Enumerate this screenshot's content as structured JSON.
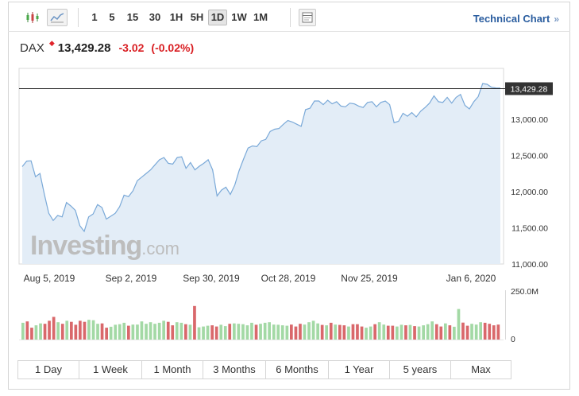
{
  "toolbar": {
    "timeframes": [
      "1",
      "5",
      "15",
      "30",
      "1H",
      "5H",
      "1D",
      "1W",
      "1M"
    ],
    "active_timeframe": "1D",
    "technical_label": "Technical Chart",
    "technical_arrow": "»"
  },
  "quote": {
    "symbol": "DAX",
    "price": "13,429.28",
    "change": "-3.02",
    "change_pct": "(-0.02%)"
  },
  "watermark": {
    "main": "Investing",
    "domain": ".com"
  },
  "range_buttons": [
    "1 Day",
    "1 Week",
    "1 Month",
    "3 Months",
    "6 Months",
    "1 Year",
    "5 years",
    "Max"
  ],
  "colors": {
    "line": "#7aa9d8",
    "area": "#e3edf7",
    "up": "#a3d9a5",
    "down": "#d9686b",
    "last_price_bg": "#333333",
    "change_negative": "#d91f23",
    "link": "#2a5d9f"
  },
  "chart_data": {
    "type": "area",
    "series": [
      {
        "values": [
          12345,
          12420,
          12425,
          12205,
          12250,
          11960,
          11700,
          11600,
          11670,
          11650,
          11850,
          11800,
          11740,
          11530,
          11450,
          11650,
          11690,
          11820,
          11780,
          11620,
          11660,
          11700,
          11790,
          11950,
          11930,
          12010,
          12150,
          12200,
          12250,
          12300,
          12370,
          12440,
          12470,
          12390,
          12380,
          12470,
          12480,
          12320,
          12400,
          12300,
          12350,
          12390,
          12440,
          12300,
          11940,
          12020,
          12060,
          11960,
          12090,
          12290,
          12450,
          12600,
          12630,
          12620,
          12700,
          12720,
          12830,
          12860,
          12870,
          12930,
          12980,
          12960,
          12930,
          12900,
          13130,
          13150,
          13250,
          13250,
          13200,
          13260,
          13210,
          13240,
          13180,
          13170,
          13220,
          13210,
          13180,
          13160,
          13230,
          13240,
          13170,
          13230,
          13250,
          13200,
          12950,
          12970,
          13080,
          13040,
          13090,
          13030,
          13110,
          13160,
          13220,
          13320,
          13240,
          13230,
          13300,
          13220,
          13300,
          13340,
          13190,
          13140,
          13240,
          13310,
          13490,
          13480,
          13440,
          13430,
          13429.28
        ]
      }
    ],
    "y_ticks": [
      "13,000.00",
      "12,500.00",
      "12,000.00",
      "11,500.00",
      "11,000.00"
    ],
    "ylim": [
      11000,
      13700
    ],
    "x_labels": [
      "Aug 5, 2019",
      "Sep 2, 2019",
      "Sep 30, 2019",
      "Oct 28, 2019",
      "Nov 25, 2019",
      "Jan 6, 2020"
    ],
    "last_price_label": "13,429.28",
    "last_price": 13429.28,
    "volume": {
      "ticks": [
        "250.0M",
        "0"
      ],
      "ylim": [
        0,
        250
      ],
      "values": [
        85,
        92,
        60,
        72,
        82,
        80,
        95,
        115,
        88,
        80,
        95,
        90,
        75,
        95,
        90,
        100,
        98,
        80,
        82,
        60,
        65,
        75,
        78,
        85,
        70,
        76,
        76,
        92,
        80,
        88,
        80,
        85,
        95,
        90,
        72,
        88,
        85,
        78,
        75,
        170,
        62,
        66,
        70,
        72,
        66,
        75,
        68,
        80,
        82,
        80,
        78,
        72,
        85,
        75,
        80,
        85,
        88,
        76,
        75,
        72,
        70,
        76,
        66,
        80,
        76,
        88,
        95,
        82,
        74,
        72,
        85,
        76,
        74,
        72,
        66,
        78,
        78,
        66,
        60,
        66,
        78,
        88,
        76,
        70,
        70,
        66,
        75,
        72,
        74,
        68,
        66,
        72,
        78,
        92,
        78,
        66,
        82,
        72,
        65,
        155,
        86,
        70,
        80,
        76,
        88,
        85,
        80,
        72,
        76
      ],
      "up": [
        1,
        0,
        0,
        1,
        1,
        0,
        0,
        0,
        1,
        0,
        1,
        0,
        0,
        0,
        0,
        1,
        1,
        1,
        0,
        0,
        1,
        1,
        1,
        1,
        0,
        1,
        1,
        1,
        1,
        1,
        1,
        1,
        1,
        0,
        0,
        1,
        1,
        0,
        1,
        0,
        1,
        1,
        1,
        0,
        0,
        1,
        1,
        0,
        1,
        1,
        1,
        1,
        1,
        0,
        1,
        1,
        1,
        1,
        1,
        1,
        1,
        0,
        0,
        0,
        1,
        1,
        1,
        1,
        0,
        1,
        0,
        1,
        0,
        0,
        1,
        0,
        0,
        0,
        1,
        1,
        0,
        1,
        1,
        0,
        0,
        1,
        1,
        0,
        1,
        0,
        1,
        1,
        1,
        1,
        0,
        0,
        1,
        0,
        1,
        1,
        0,
        0,
        1,
        1,
        1,
        0,
        0,
        0,
        0
      ]
    }
  }
}
